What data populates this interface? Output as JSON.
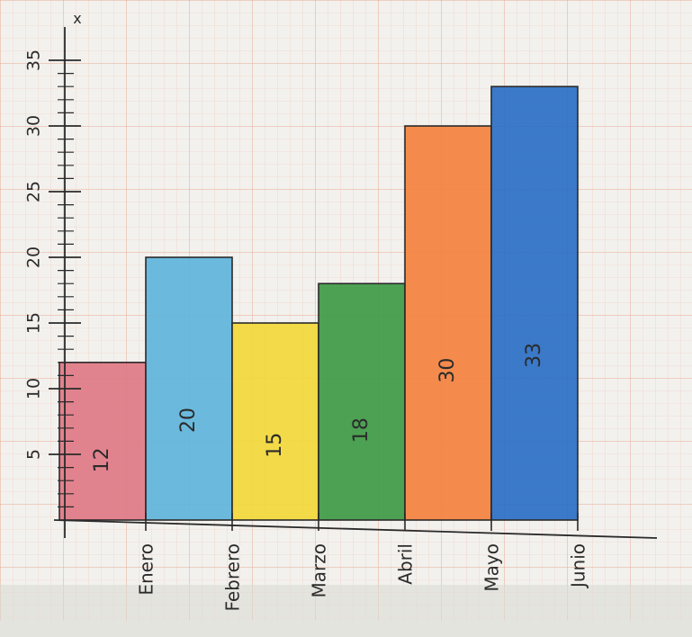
{
  "chart_data": {
    "type": "bar",
    "categories": [
      "Enero",
      "Febrero",
      "Marzo",
      "Abril",
      "Mayo",
      "Junio"
    ],
    "values": [
      12,
      20,
      15,
      18,
      30,
      33
    ],
    "bar_labels": [
      "12",
      "20",
      "15",
      "18",
      "30",
      "33"
    ],
    "colors": [
      "#e07a85",
      "#5fb4db",
      "#f2d83a",
      "#3f9a45",
      "#f4823f",
      "#2b6fc6"
    ],
    "yticks": [
      {
        "value": 5,
        "label": "5"
      },
      {
        "value": 10,
        "label": "10"
      },
      {
        "value": 15,
        "label": "15"
      },
      {
        "value": 20,
        "label": "20"
      },
      {
        "value": 25,
        "label": "25"
      },
      {
        "value": 30,
        "label": "30"
      },
      {
        "value": 35,
        "label": "35"
      }
    ],
    "ylim": [
      0,
      37
    ],
    "y_axis_marker": "x",
    "grid": true,
    "legend": "none"
  }
}
